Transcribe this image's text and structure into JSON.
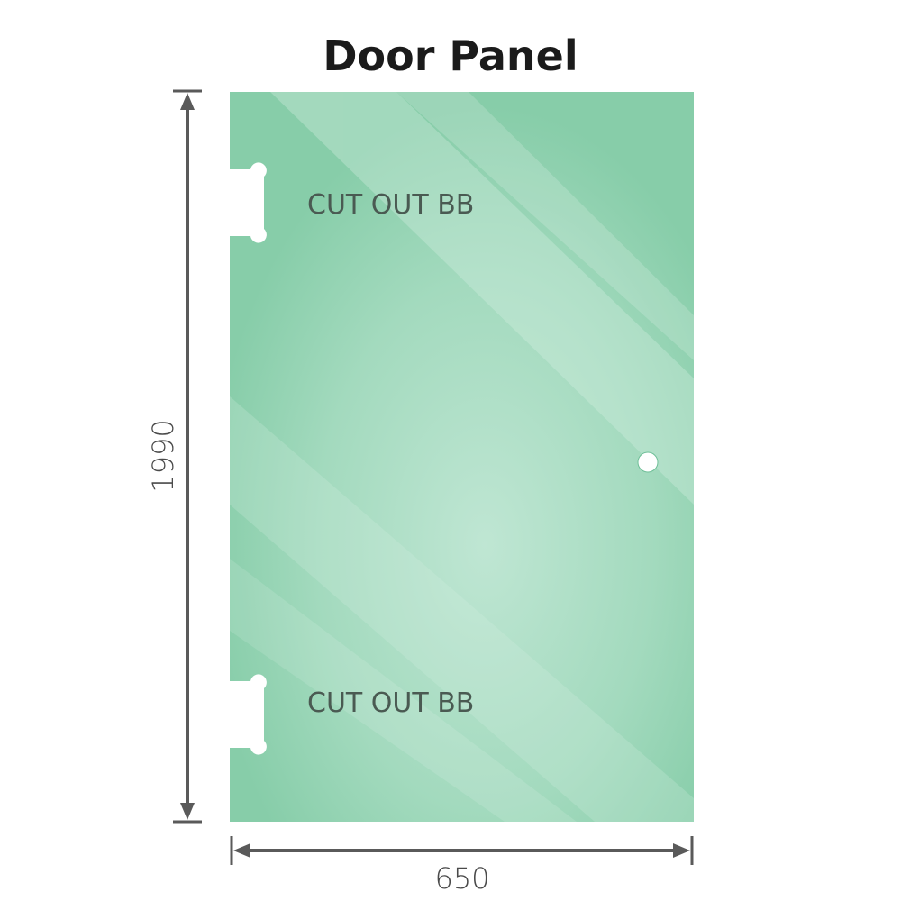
{
  "title": "Door Panel",
  "height_label": "1990",
  "width_label": "650",
  "cutouts": [
    {
      "label": "CUT OUT BB"
    },
    {
      "label": "CUT OUT BB"
    }
  ],
  "colors": {
    "glass": "#86cda8",
    "glass_light": "#bde5d1",
    "dimension_line": "#5a5a5a",
    "text": "#4a5a52"
  }
}
